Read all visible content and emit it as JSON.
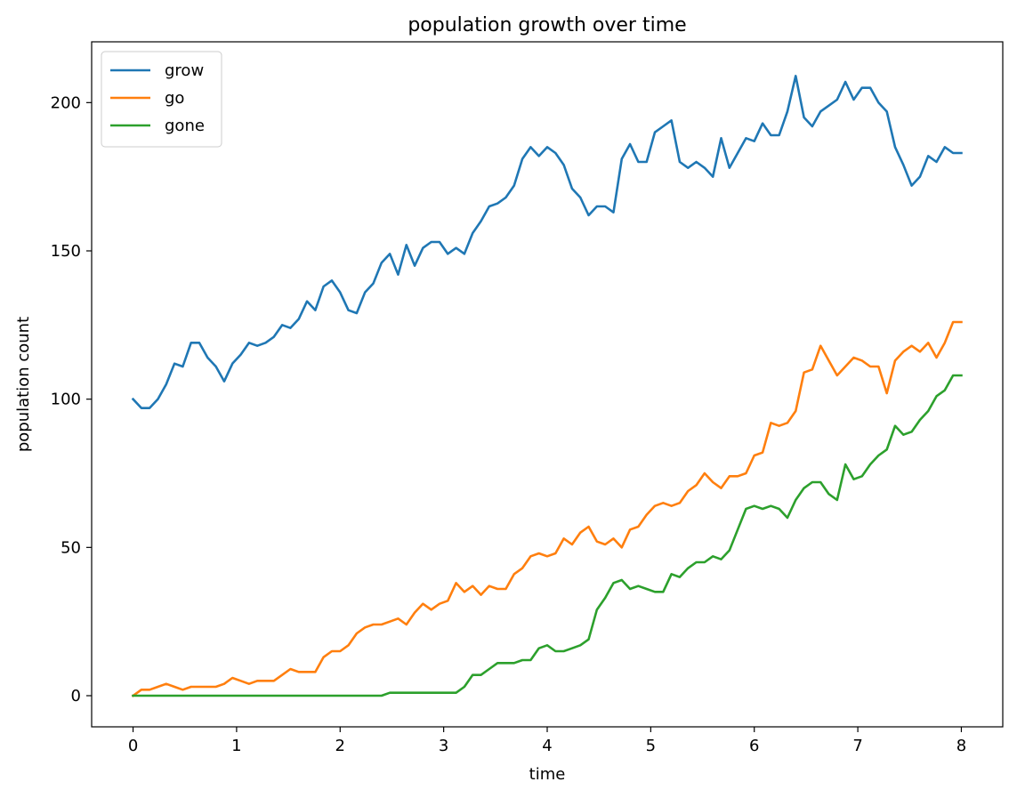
{
  "chart_data": {
    "type": "line",
    "title": "population growth over time",
    "xlabel": "time",
    "ylabel": "population count",
    "xlim": [
      -0.4,
      8.4
    ],
    "ylim": [
      -10.5,
      220.5
    ],
    "xticks": [
      0,
      1,
      2,
      3,
      4,
      5,
      6,
      7,
      8
    ],
    "yticks": [
      0,
      50,
      100,
      150,
      200
    ],
    "grid": false,
    "legend_position": "upper left",
    "x": [
      0,
      0.08,
      0.16,
      0.24,
      0.32,
      0.4,
      0.48,
      0.56,
      0.64,
      0.72,
      0.8,
      0.88,
      0.96,
      1.04,
      1.12,
      1.2,
      1.28,
      1.36,
      1.44,
      1.52,
      1.6,
      1.68,
      1.76,
      1.84,
      1.92,
      2.0,
      2.08,
      2.16,
      2.24,
      2.32,
      2.4,
      2.48,
      2.56,
      2.64,
      2.72,
      2.8,
      2.88,
      2.96,
      3.04,
      3.12,
      3.2,
      3.28,
      3.36,
      3.44,
      3.52,
      3.6,
      3.68,
      3.76,
      3.84,
      3.92,
      4.0,
      4.08,
      4.16,
      4.24,
      4.32,
      4.4,
      4.48,
      4.56,
      4.64,
      4.72,
      4.8,
      4.88,
      4.96,
      5.04,
      5.12,
      5.2,
      5.28,
      5.36,
      5.44,
      5.52,
      5.6,
      5.68,
      5.76,
      5.84,
      5.92,
      6.0,
      6.08,
      6.16,
      6.24,
      6.32,
      6.4,
      6.48,
      6.56,
      6.64,
      6.72,
      6.8,
      6.88,
      6.96,
      7.04,
      7.12,
      7.2,
      7.28,
      7.36,
      7.44,
      7.52,
      7.6,
      7.68,
      7.76,
      7.84,
      7.92,
      8.0
    ],
    "series": [
      {
        "name": "grow",
        "color": "#1f77b4",
        "values": [
          100,
          97,
          97,
          100,
          105,
          112,
          111,
          119,
          119,
          114,
          111,
          106,
          112,
          115,
          119,
          118,
          119,
          121,
          125,
          124,
          127,
          133,
          130,
          138,
          140,
          136,
          130,
          129,
          136,
          139,
          146,
          149,
          142,
          152,
          145,
          151,
          153,
          153,
          149,
          151,
          149,
          156,
          160,
          165,
          166,
          168,
          172,
          181,
          185,
          182,
          185,
          183,
          179,
          171,
          168,
          162,
          165,
          165,
          163,
          181,
          186,
          180,
          180,
          190,
          192,
          194,
          180,
          178,
          180,
          178,
          175,
          188,
          178,
          183,
          188,
          187,
          193,
          189,
          189,
          197,
          209,
          195,
          192,
          197,
          199,
          201,
          207,
          201,
          205,
          205,
          200,
          197,
          185,
          179,
          172,
          175,
          182,
          180,
          185,
          183,
          183
        ]
      },
      {
        "name": "go",
        "color": "#ff7f0e",
        "values": [
          0,
          2,
          2,
          3,
          4,
          3,
          2,
          3,
          3,
          3,
          3,
          4,
          6,
          5,
          4,
          5,
          5,
          5,
          7,
          9,
          8,
          8,
          8,
          13,
          15,
          15,
          17,
          21,
          23,
          24,
          24,
          25,
          26,
          24,
          28,
          31,
          29,
          31,
          32,
          38,
          35,
          37,
          34,
          37,
          36,
          36,
          41,
          43,
          47,
          48,
          47,
          48,
          53,
          51,
          55,
          57,
          52,
          51,
          53,
          50,
          56,
          57,
          61,
          64,
          65,
          64,
          65,
          69,
          71,
          75,
          72,
          70,
          74,
          74,
          75,
          81,
          82,
          92,
          91,
          92,
          96,
          109,
          110,
          118,
          113,
          108,
          111,
          114,
          113,
          111,
          111,
          102,
          113,
          116,
          118,
          116,
          119,
          114,
          119,
          126,
          126
        ]
      },
      {
        "name": "gone",
        "color": "#2ca02c",
        "values": [
          0,
          0,
          0,
          0,
          0,
          0,
          0,
          0,
          0,
          0,
          0,
          0,
          0,
          0,
          0,
          0,
          0,
          0,
          0,
          0,
          0,
          0,
          0,
          0,
          0,
          0,
          0,
          0,
          0,
          0,
          0,
          1,
          1,
          1,
          1,
          1,
          1,
          1,
          1,
          1,
          3,
          7,
          7,
          9,
          11,
          11,
          11,
          12,
          12,
          16,
          17,
          15,
          15,
          16,
          17,
          19,
          29,
          33,
          38,
          39,
          36,
          37,
          36,
          35,
          35,
          41,
          40,
          43,
          45,
          45,
          47,
          46,
          49,
          56,
          63,
          64,
          63,
          64,
          63,
          60,
          66,
          70,
          72,
          72,
          68,
          66,
          78,
          73,
          74,
          78,
          81,
          83,
          91,
          88,
          89,
          93,
          96,
          101,
          103,
          108,
          108
        ]
      }
    ]
  }
}
